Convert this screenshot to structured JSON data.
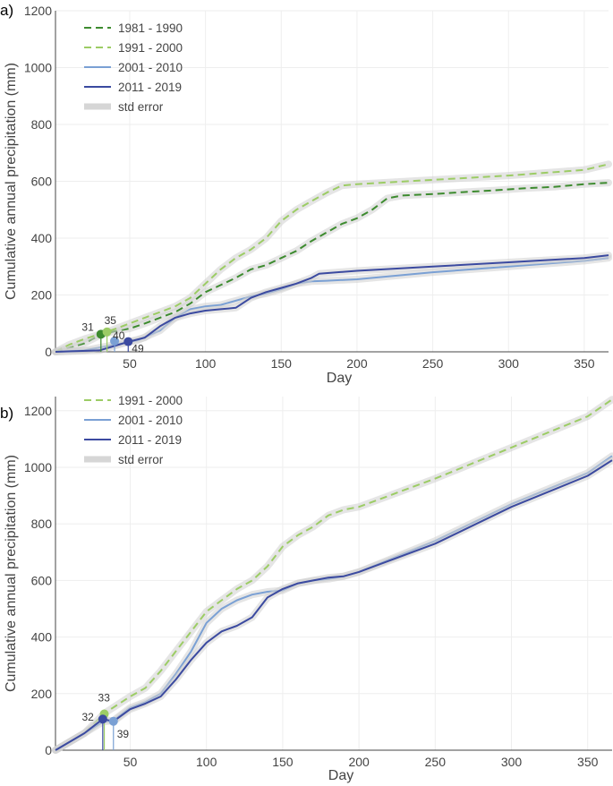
{
  "chart_data": [
    {
      "panel_label": "a)",
      "type": "line",
      "xlabel": "Day",
      "ylabel": "Cumulative annual precipitation (mm)",
      "xlim": [
        1,
        366
      ],
      "ylim": [
        0,
        1200
      ],
      "xticks": [
        50,
        100,
        150,
        200,
        250,
        300,
        350
      ],
      "yticks": [
        0,
        200,
        400,
        600,
        800,
        1000,
        1200
      ],
      "legend_position": "top-left",
      "std_error_label": "std error",
      "series": [
        {
          "name": "1981 - 1990",
          "color": "#3d8b2f",
          "dash": true,
          "x": [
            1,
            20,
            31,
            40,
            50,
            60,
            70,
            80,
            90,
            100,
            110,
            120,
            130,
            140,
            150,
            160,
            170,
            180,
            190,
            200,
            210,
            220,
            230,
            250,
            270,
            290,
            310,
            330,
            350,
            366
          ],
          "y": [
            0,
            30,
            60,
            72,
            82,
            100,
            120,
            140,
            170,
            210,
            235,
            260,
            290,
            305,
            330,
            355,
            390,
            420,
            450,
            470,
            500,
            540,
            550,
            555,
            562,
            568,
            575,
            580,
            590,
            595
          ]
        },
        {
          "name": "1991 - 2000",
          "color": "#9ccc65",
          "dash": true,
          "x": [
            1,
            10,
            20,
            35,
            50,
            60,
            70,
            80,
            90,
            100,
            110,
            120,
            130,
            140,
            150,
            160,
            170,
            180,
            190,
            200,
            250,
            300,
            350,
            366
          ],
          "y": [
            0,
            25,
            45,
            70,
            100,
            120,
            140,
            160,
            190,
            240,
            290,
            330,
            360,
            400,
            460,
            500,
            530,
            560,
            585,
            590,
            605,
            620,
            640,
            660
          ]
        },
        {
          "name": "2001 - 2010",
          "color": "#7aa0d4",
          "dash": false,
          "x": [
            1,
            20,
            40,
            55,
            70,
            80,
            90,
            100,
            110,
            120,
            130,
            140,
            150,
            160,
            170,
            180,
            200,
            250,
            300,
            350,
            366
          ],
          "y": [
            0,
            5,
            25,
            40,
            75,
            120,
            150,
            160,
            165,
            180,
            195,
            205,
            220,
            240,
            248,
            250,
            255,
            280,
            300,
            320,
            330
          ]
        },
        {
          "name": "2011 - 2019",
          "color": "#3b4aa0",
          "dash": false,
          "x": [
            1,
            30,
            49,
            60,
            70,
            80,
            90,
            100,
            110,
            120,
            130,
            140,
            150,
            160,
            170,
            175,
            200,
            250,
            300,
            350,
            366
          ],
          "y": [
            0,
            5,
            35,
            50,
            90,
            120,
            135,
            145,
            150,
            155,
            190,
            210,
            225,
            240,
            260,
            275,
            285,
            300,
            315,
            330,
            340
          ]
        }
      ],
      "annotations": [
        {
          "label": "31",
          "x": 31,
          "y": 62,
          "color": "#3d8b2f"
        },
        {
          "label": "35",
          "x": 35,
          "y": 70,
          "color": "#9ccc65"
        },
        {
          "label": "40",
          "x": 40,
          "y": 38,
          "color": "#7aa0d4"
        },
        {
          "label": "49",
          "x": 49,
          "y": 36,
          "color": "#3b4aa0"
        }
      ]
    },
    {
      "panel_label": "b)",
      "type": "line",
      "xlabel": "Day",
      "ylabel": "Cumulative annual precipitation (mm)",
      "xlim": [
        1,
        366
      ],
      "ylim": [
        0,
        1250
      ],
      "xticks": [
        50,
        100,
        150,
        200,
        250,
        300,
        350
      ],
      "yticks": [
        0,
        200,
        400,
        600,
        800,
        1000,
        1200
      ],
      "legend_position": "top-left",
      "std_error_label": "std error",
      "series": [
        {
          "name": "1991 - 2000",
          "color": "#9ccc65",
          "dash": true,
          "x": [
            1,
            20,
            33,
            50,
            60,
            70,
            80,
            90,
            100,
            110,
            120,
            130,
            140,
            150,
            160,
            170,
            180,
            190,
            200,
            250,
            300,
            350,
            366
          ],
          "y": [
            0,
            60,
            130,
            190,
            220,
            280,
            350,
            420,
            490,
            530,
            570,
            600,
            650,
            720,
            760,
            790,
            830,
            850,
            860,
            960,
            1070,
            1180,
            1240
          ]
        },
        {
          "name": "2001 - 2010",
          "color": "#7aa0d4",
          "dash": false,
          "x": [
            1,
            20,
            32,
            39,
            50,
            60,
            70,
            80,
            90,
            100,
            110,
            120,
            130,
            140,
            150,
            160,
            170,
            180,
            190,
            200,
            250,
            300,
            350,
            366
          ],
          "y": [
            0,
            60,
            100,
            105,
            150,
            170,
            200,
            270,
            350,
            450,
            500,
            530,
            550,
            560,
            565,
            590,
            600,
            605,
            615,
            630,
            740,
            870,
            980,
            1040
          ]
        },
        {
          "name": "2011 - 2019",
          "color": "#3b4aa0",
          "dash": false,
          "x": [
            1,
            20,
            32,
            39,
            50,
            60,
            70,
            80,
            90,
            100,
            110,
            120,
            130,
            140,
            150,
            160,
            170,
            180,
            190,
            200,
            250,
            300,
            350,
            366
          ],
          "y": [
            0,
            60,
            110,
            102,
            145,
            165,
            190,
            250,
            320,
            380,
            420,
            440,
            470,
            540,
            570,
            590,
            600,
            610,
            615,
            630,
            730,
            860,
            970,
            1025
          ]
        }
      ],
      "annotations": [
        {
          "label": "33",
          "x": 33,
          "y": 128,
          "color": "#9ccc65"
        },
        {
          "label": "32",
          "x": 32,
          "y": 110,
          "color": "#3b4aa0"
        },
        {
          "label": "39",
          "x": 39,
          "y": 102,
          "color": "#7aa0d4"
        }
      ]
    }
  ]
}
